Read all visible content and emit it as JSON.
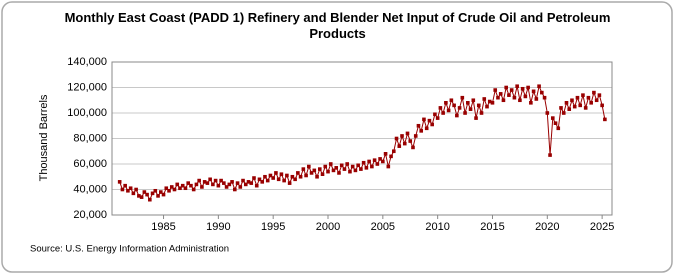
{
  "chart_data": {
    "type": "line",
    "title": "Monthly East Coast (PADD 1) Refinery and Blender Net Input of Crude Oil and Petroleum Products",
    "y_label": "Thousand Barrels",
    "source": "Source: U.S. Energy Information Administration",
    "color": "#990000",
    "grid": true,
    "xlim": [
      1980.3,
      2025.9
    ],
    "xticks": [
      1985,
      1990,
      1995,
      2000,
      2005,
      2010,
      2015,
      2020,
      2025
    ],
    "ylim": [
      20000,
      140000
    ],
    "yticks": [
      {
        "value": 20000,
        "label": "20,000"
      },
      {
        "value": 40000,
        "label": "40,000"
      },
      {
        "value": 60000,
        "label": "60,000"
      },
      {
        "value": 80000,
        "label": "80,000"
      },
      {
        "value": 100000,
        "label": "100,000"
      },
      {
        "value": 120000,
        "label": "120,000"
      },
      {
        "value": 140000,
        "label": "140,000"
      }
    ],
    "x": [
      1981,
      1981.25,
      1981.5,
      1981.75,
      1982,
      1982.25,
      1982.5,
      1982.75,
      1983,
      1983.25,
      1983.5,
      1983.75,
      1984,
      1984.25,
      1984.5,
      1984.75,
      1985,
      1985.25,
      1985.5,
      1985.75,
      1986,
      1986.25,
      1986.5,
      1986.75,
      1987,
      1987.25,
      1987.5,
      1987.75,
      1988,
      1988.25,
      1988.5,
      1988.75,
      1989,
      1989.25,
      1989.5,
      1989.75,
      1990,
      1990.25,
      1990.5,
      1990.75,
      1991,
      1991.25,
      1991.5,
      1991.75,
      1992,
      1992.25,
      1992.5,
      1992.75,
      1993,
      1993.25,
      1993.5,
      1993.75,
      1994,
      1994.25,
      1994.5,
      1994.75,
      1995,
      1995.25,
      1995.5,
      1995.75,
      1996,
      1996.25,
      1996.5,
      1996.75,
      1997,
      1997.25,
      1997.5,
      1997.75,
      1998,
      1998.25,
      1998.5,
      1998.75,
      1999,
      1999.25,
      1999.5,
      1999.75,
      2000,
      2000.25,
      2000.5,
      2000.75,
      2001,
      2001.25,
      2001.5,
      2001.75,
      2002,
      2002.25,
      2002.5,
      2002.75,
      2003,
      2003.25,
      2003.5,
      2003.75,
      2004,
      2004.25,
      2004.5,
      2004.75,
      2005,
      2005.25,
      2005.5,
      2005.75,
      2006,
      2006.25,
      2006.5,
      2006.75,
      2007,
      2007.25,
      2007.5,
      2007.75,
      2008,
      2008.25,
      2008.5,
      2008.75,
      2009,
      2009.25,
      2009.5,
      2009.75,
      2010,
      2010.25,
      2010.5,
      2010.75,
      2011,
      2011.25,
      2011.5,
      2011.75,
      2012,
      2012.25,
      2012.5,
      2012.75,
      2013,
      2013.25,
      2013.5,
      2013.75,
      2014,
      2014.25,
      2014.5,
      2014.75,
      2015,
      2015.25,
      2015.5,
      2015.75,
      2016,
      2016.25,
      2016.5,
      2016.75,
      2017,
      2017.25,
      2017.5,
      2017.75,
      2018,
      2018.25,
      2018.5,
      2018.75,
      2019,
      2019.25,
      2019.5,
      2019.75,
      2020,
      2020.25,
      2020.5,
      2020.75,
      2021,
      2021.25,
      2021.5,
      2021.75,
      2022,
      2022.25,
      2022.5,
      2022.75,
      2023,
      2023.25,
      2023.5,
      2023.75,
      2024,
      2024.25,
      2024.5,
      2024.75,
      2025,
      2025.25
    ],
    "values": [
      46000,
      40000,
      43000,
      39000,
      41000,
      37000,
      40000,
      35000,
      34000,
      38000,
      36000,
      32000,
      37000,
      39000,
      35000,
      38000,
      36000,
      41000,
      39000,
      42000,
      40000,
      44000,
      41000,
      43000,
      41000,
      45000,
      43000,
      40000,
      44000,
      47000,
      42000,
      46000,
      45000,
      48000,
      44000,
      47000,
      43000,
      47000,
      45000,
      42000,
      44000,
      46000,
      40000,
      45000,
      42000,
      47000,
      44000,
      46000,
      45000,
      49000,
      43000,
      48000,
      46000,
      50000,
      47000,
      51000,
      49000,
      53000,
      48000,
      52000,
      47000,
      51000,
      45000,
      50000,
      48000,
      53000,
      50000,
      56000,
      51000,
      58000,
      53000,
      55000,
      50000,
      56000,
      52000,
      58000,
      54000,
      60000,
      55000,
      57000,
      53000,
      59000,
      56000,
      60000,
      54000,
      58000,
      55000,
      59000,
      56000,
      61000,
      57000,
      62000,
      58000,
      63000,
      60000,
      64000,
      62000,
      68000,
      58000,
      66000,
      70000,
      80000,
      74000,
      82000,
      76000,
      84000,
      78000,
      73000,
      82000,
      90000,
      86000,
      95000,
      88000,
      94000,
      91000,
      99000,
      96000,
      104000,
      100000,
      108000,
      102000,
      110000,
      106000,
      98000,
      104000,
      112000,
      100000,
      108000,
      103000,
      110000,
      96000,
      106000,
      100000,
      111000,
      105000,
      109000,
      108000,
      118000,
      112000,
      115000,
      110000,
      120000,
      114000,
      118000,
      112000,
      121000,
      110000,
      119000,
      113000,
      120000,
      108000,
      117000,
      111000,
      121000,
      116000,
      112000,
      100000,
      67000,
      96000,
      92000,
      88000,
      104000,
      100000,
      108000,
      103000,
      110000,
      105000,
      112000,
      106000,
      114000,
      104000,
      112000,
      108000,
      116000,
      110000,
      114000,
      106000,
      95000
    ]
  }
}
